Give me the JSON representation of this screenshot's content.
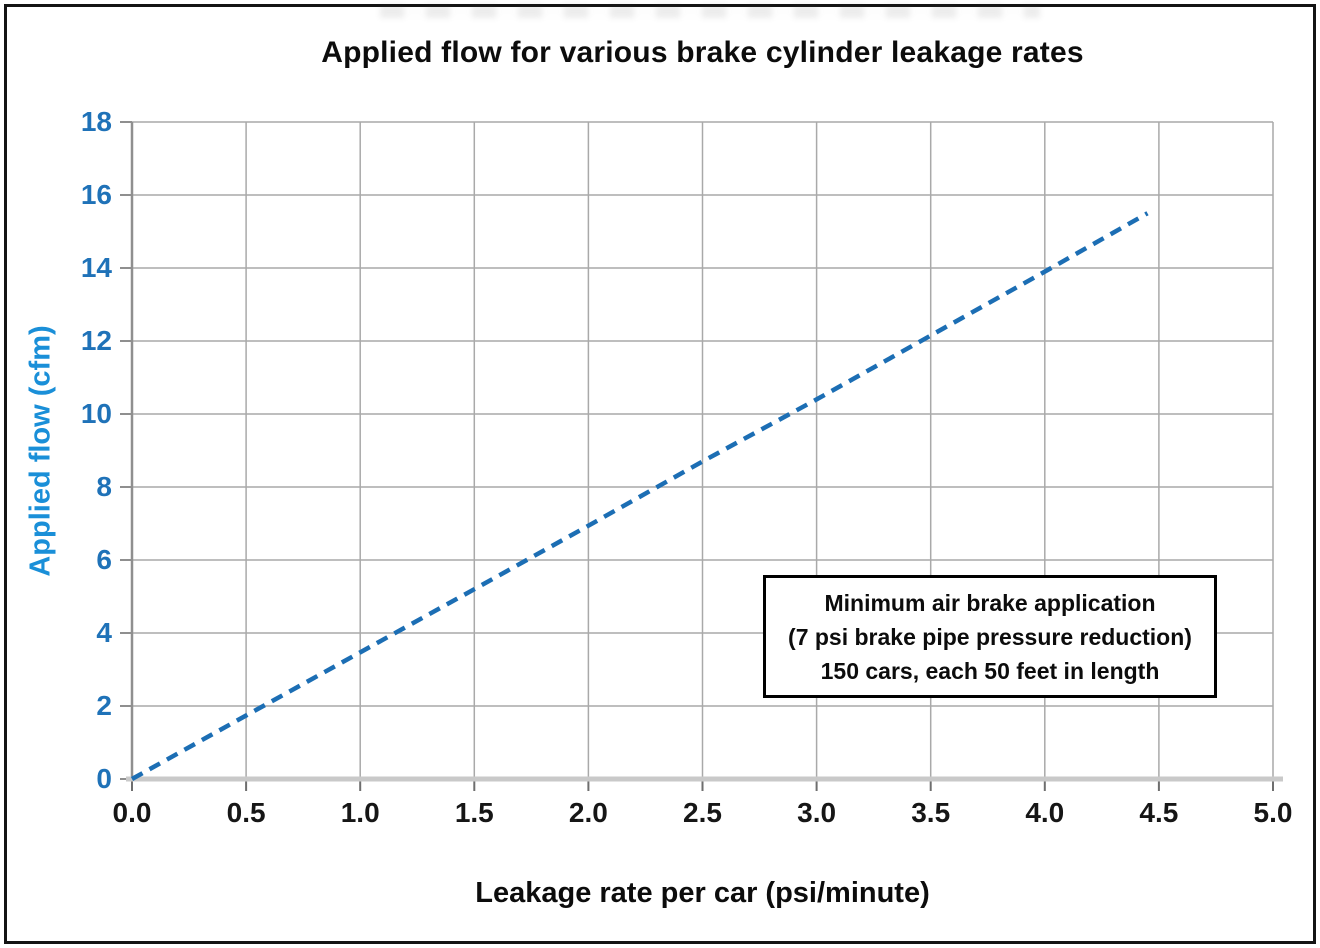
{
  "figure": {
    "title": "Applied flow for various brake cylinder leakage rates",
    "x_axis": {
      "label": "Leakage rate per car (psi/minute)",
      "tick_labels": [
        "0.0",
        "0.5",
        "1.0",
        "1.5",
        "2.0",
        "2.5",
        "3.0",
        "3.5",
        "4.0",
        "4.5",
        "5.0"
      ]
    },
    "y_axis": {
      "label": "Applied flow (cfm)",
      "tick_labels": [
        "0",
        "2",
        "4",
        "6",
        "8",
        "10",
        "12",
        "14",
        "16",
        "18"
      ]
    },
    "annotation": {
      "line1": "Minimum air brake application",
      "line2": "(7 psi brake pipe pressure reduction)",
      "line3": "150 cars, each 50 feet in length"
    },
    "colors": {
      "line": "#1c6eb4",
      "y_tick_labels": "#1f72b8",
      "y_axis_label": "#1a8fd8",
      "x_tick_labels": "#161616",
      "grid": "#a9a9a9",
      "axis_spine": "#8f8f8f",
      "bottom_axis_band": "#c9c9c9",
      "bottom_tick": "#6e6e6e"
    }
  },
  "chart_data": {
    "type": "line",
    "title": "Applied flow for various brake cylinder leakage rates",
    "xlabel": "Leakage rate per car (psi/minute)",
    "ylabel": "Applied flow (cfm)",
    "xlim": [
      0,
      5
    ],
    "ylim": [
      0,
      18
    ],
    "x_ticks": [
      0.0,
      0.5,
      1.0,
      1.5,
      2.0,
      2.5,
      3.0,
      3.5,
      4.0,
      4.5,
      5.0
    ],
    "y_ticks": [
      0,
      2,
      4,
      6,
      8,
      10,
      12,
      14,
      16,
      18
    ],
    "grid": true,
    "legend": false,
    "series": [
      {
        "name": "Applied flow (minimum air brake application)",
        "style": "dashed",
        "color": "#1c6eb4",
        "points": [
          [
            0,
            0
          ],
          [
            0.5,
            1.74
          ],
          [
            1.0,
            3.47
          ],
          [
            1.5,
            5.2
          ],
          [
            2.0,
            6.94
          ],
          [
            2.5,
            8.7
          ],
          [
            3.0,
            10.4
          ],
          [
            3.5,
            12.15
          ],
          [
            4.0,
            13.9
          ],
          [
            4.45,
            15.5
          ]
        ]
      }
    ],
    "annotation_text": "Minimum air brake application (7 psi brake pipe pressure reduction) 150 cars, each 50 feet in length"
  }
}
